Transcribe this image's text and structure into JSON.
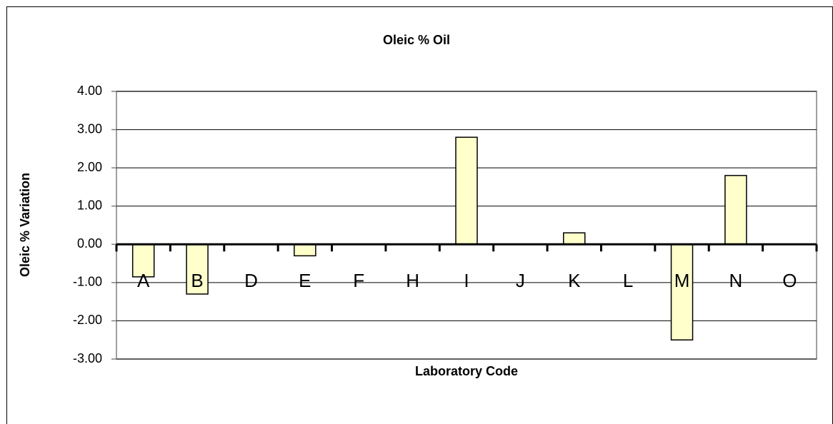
{
  "chart_data": {
    "type": "bar",
    "title": "Oleic % Oil",
    "x_label": "Laboratory Code",
    "y_label": "Oleic % Variation",
    "categories": [
      "A",
      "B",
      "D",
      "E",
      "F",
      "H",
      "I",
      "J",
      "K",
      "L",
      "M",
      "N",
      "O"
    ],
    "values": [
      -0.85,
      -1.3,
      0,
      -0.3,
      0,
      0,
      2.8,
      0,
      0.3,
      0,
      -2.5,
      1.8,
      0
    ],
    "color": "#ffffcc",
    "ylim": [
      -3,
      4
    ],
    "yticks": [
      {
        "value": -3,
        "label": "-3.00"
      },
      {
        "value": -2,
        "label": "-2.00"
      },
      {
        "value": -1,
        "label": "-1.00"
      },
      {
        "value": 0,
        "label": "0.00"
      },
      {
        "value": 1,
        "label": "1.00"
      },
      {
        "value": 2,
        "label": "2.00"
      },
      {
        "value": 3,
        "label": "3.00"
      },
      {
        "value": 4,
        "label": "4.00"
      }
    ],
    "grid": true
  }
}
